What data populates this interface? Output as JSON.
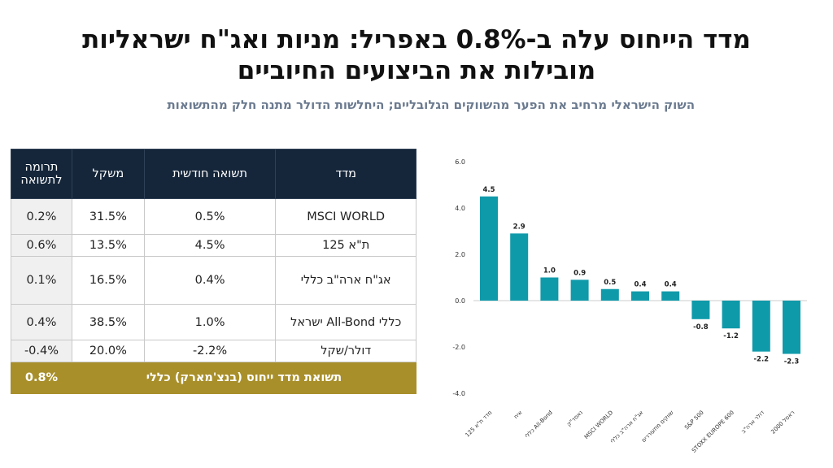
{
  "header": {
    "title_line1": "מדד הייחוס עלה ב-0.8% באפריל: מניות ואג\"ח ישראליות",
    "title_line2": "מובילות את הביצועים החיוביים",
    "subtitle": "השוק הישראלי מרחיב את הפער מהשווקים הגלובליים; היחלשות הדולר מתנה חלק מהתשואות"
  },
  "table": {
    "headers": [
      "מדד",
      "תשואה חודשית",
      "משקל",
      "תרומה לתשואה"
    ],
    "rows": [
      {
        "name": "MSCI WORLD",
        "monthly": "0.5%",
        "weight": "31.5%",
        "contribution": "0.2%"
      },
      {
        "name": "ת\"א 125",
        "monthly": "4.5%",
        "weight": "13.5%",
        "contribution": "0.6%"
      },
      {
        "name": "אג\"ח ארה\"ב כללי",
        "monthly": "0.4%",
        "weight": "16.5%",
        "contribution": "0.1%"
      },
      {
        "name": "כללי All-Bond ישראל",
        "monthly": "1.0%",
        "weight": "38.5%",
        "contribution": "0.4%"
      },
      {
        "name": "דולר/שקל",
        "monthly": "-2.2%",
        "weight": "20.0%",
        "contribution": "-0.4%"
      }
    ],
    "total_label": "תשואת מדד ייחוס (בנצ'מארק) כללי",
    "total_value": "0.8%"
  },
  "chart_data": {
    "type": "bar",
    "categories": [
      "מדד ת\"א 125",
      "איח",
      "כללי All-Bond",
      "נאסד\"ק",
      "MSCI WORLD",
      "אג\"ח ארה\"ב כללי",
      "שווקים מתעוררים",
      "S&P 500",
      "STOXX EUROPE 600",
      "דולר ארה\"ב",
      "ראסל 2000"
    ],
    "values": [
      4.5,
      2.9,
      1.0,
      0.9,
      0.5,
      0.4,
      0.4,
      -0.8,
      -1.2,
      -2.2,
      -2.3
    ],
    "data_labels": [
      "4.5",
      "2.9",
      "1.0",
      "0.9",
      "0.5",
      "0.4",
      "0.4",
      "-0.8",
      "-1.2",
      "-2.2",
      "-2.3"
    ],
    "yticks": [
      "6.0",
      "4.0",
      "2.0",
      "0.0",
      "-2.0",
      "-4.0"
    ],
    "ylim": [
      -4,
      6
    ],
    "grid": false,
    "bar_color": "#0f9aaa"
  }
}
